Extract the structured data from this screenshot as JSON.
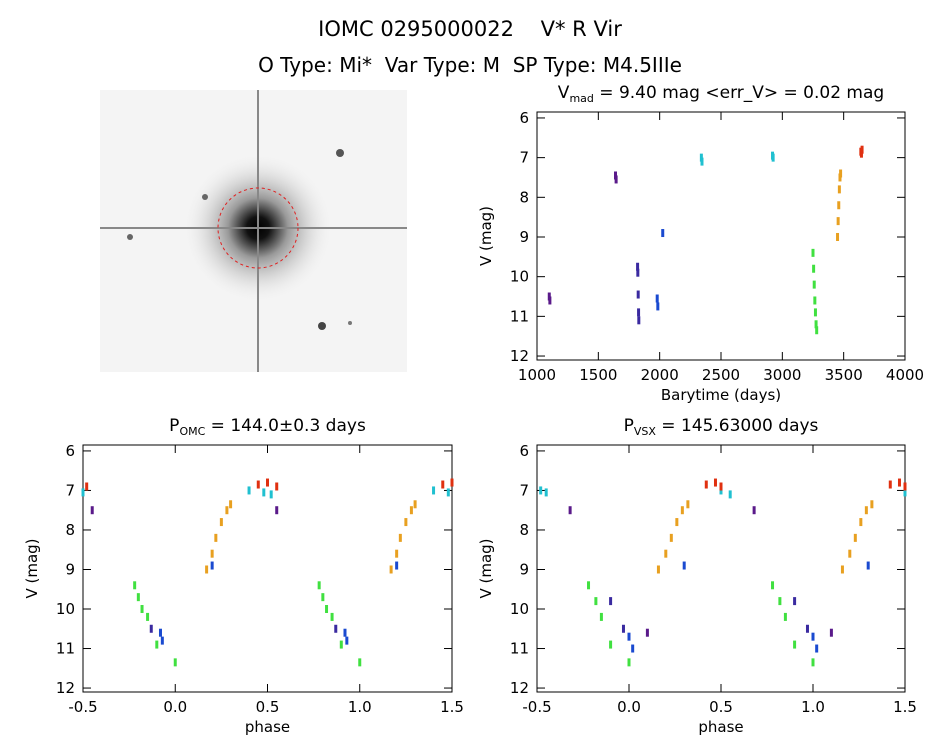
{
  "header": {
    "title": "IOMC 0295000022    V* R Vir",
    "subtitle": "O Type: Mi*  Var Type: M  SP Type: M4.5IIIe"
  },
  "chart_data": [
    {
      "type": "scatter",
      "title": "V",
      "title_sub": "mad",
      "title_rest": " = 9.40 mag <err_V> = 0.02 mag",
      "x_label": "Barytime (days)",
      "y_label": "V (mag)",
      "xlim": [
        1000,
        4000
      ],
      "xticks": [
        1000,
        1500,
        2000,
        2500,
        3000,
        3500,
        4000
      ],
      "ylim": [
        5.85,
        12.1
      ],
      "yticks": [
        6,
        7,
        8,
        9,
        10,
        11,
        12
      ],
      "y_inverted": true,
      "series": [
        {
          "color": "#5a1a8a",
          "x": [
            1100,
            1105,
            1640,
            1645
          ],
          "values": [
            10.5,
            10.6,
            7.45,
            7.55
          ]
        },
        {
          "color": "#3a2aa0",
          "x": [
            1820,
            1822,
            1825,
            1828,
            1830
          ],
          "values": [
            9.75,
            9.9,
            10.45,
            10.9,
            11.1
          ]
        },
        {
          "color": "#1a4ad0",
          "x": [
            1980,
            1985,
            2025
          ],
          "values": [
            10.55,
            10.75,
            8.9
          ]
        },
        {
          "color": "#20c0d0",
          "x": [
            2340,
            2345,
            2920,
            2925
          ],
          "values": [
            7.0,
            7.1,
            6.95,
            7.0
          ]
        },
        {
          "color": "#40e040",
          "x": [
            3250,
            3255,
            3260,
            3265,
            3270,
            3275,
            3280
          ],
          "values": [
            9.4,
            9.8,
            10.2,
            10.6,
            10.9,
            11.2,
            11.35
          ]
        },
        {
          "color": "#e8a020",
          "x": [
            3450,
            3455,
            3460,
            3465,
            3470,
            3475
          ],
          "values": [
            9.0,
            8.6,
            8.2,
            7.8,
            7.5,
            7.4
          ]
        },
        {
          "color": "#e03010",
          "x": [
            3640,
            3645,
            3650
          ],
          "values": [
            6.85,
            6.9,
            6.8
          ]
        }
      ]
    },
    {
      "type": "scatter",
      "title": "P",
      "title_sub": "OMC",
      "title_rest": " = 144.0±0.3 days",
      "x_label": "phase",
      "y_label": "V (mag)",
      "xlim": [
        -0.5,
        1.5
      ],
      "xticks": [
        {
          "value": -0.5,
          "label": "-0.5"
        },
        {
          "value": 0,
          "label": "0.0"
        },
        {
          "value": 0.5,
          "label": "0.5"
        },
        {
          "value": 1,
          "label": "1.0"
        },
        {
          "value": 1.5,
          "label": "1.5"
        }
      ],
      "ylim": [
        5.85,
        12.1
      ],
      "yticks": [
        6,
        7,
        8,
        9,
        10,
        11,
        12
      ],
      "y_inverted": true,
      "series": [
        {
          "color": "#5a1a8a",
          "x": [
            -0.45,
            0.55
          ],
          "values": [
            7.5,
            7.5
          ]
        },
        {
          "color": "#3a2aa0",
          "x": [
            -0.13,
            0.87
          ],
          "values": [
            10.5,
            10.5
          ]
        },
        {
          "color": "#1a4ad0",
          "x": [
            -0.08,
            -0.07,
            0.2,
            0.92,
            0.93,
            1.2
          ],
          "values": [
            10.6,
            10.8,
            8.9,
            10.6,
            10.8,
            8.9
          ]
        },
        {
          "color": "#40e040",
          "x": [
            -0.22,
            -0.2,
            -0.18,
            -0.15,
            -0.1,
            0.0,
            0.78,
            0.8,
            0.82,
            0.85,
            0.9,
            1.0
          ],
          "values": [
            9.4,
            9.7,
            10.0,
            10.2,
            10.9,
            11.35,
            9.4,
            9.7,
            10.0,
            10.2,
            10.9,
            11.35
          ]
        },
        {
          "color": "#e8a020",
          "x": [
            0.17,
            0.2,
            0.22,
            0.25,
            0.28,
            0.3,
            1.17,
            1.2,
            1.22,
            1.25,
            1.28,
            1.3
          ],
          "values": [
            9.0,
            8.6,
            8.2,
            7.8,
            7.5,
            7.35,
            9.0,
            8.6,
            8.2,
            7.8,
            7.5,
            7.35
          ]
        },
        {
          "color": "#20c0d0",
          "x": [
            -0.5,
            0.4,
            0.48,
            0.52,
            1.4,
            1.48
          ],
          "values": [
            7.05,
            7.0,
            7.05,
            7.1,
            7.0,
            7.05
          ]
        },
        {
          "color": "#e03010",
          "x": [
            -0.48,
            0.45,
            0.5,
            0.55,
            1.45,
            1.5
          ],
          "values": [
            6.9,
            6.85,
            6.8,
            6.9,
            6.85,
            6.8
          ]
        }
      ]
    },
    {
      "type": "scatter",
      "title": "P",
      "title_sub": "VSX",
      "title_rest": " = 145.63000 days",
      "x_label": "phase",
      "y_label": "V (mag)",
      "xlim": [
        -0.5,
        1.5
      ],
      "xticks": [
        {
          "value": -0.5,
          "label": "-0.5"
        },
        {
          "value": 0,
          "label": "0.0"
        },
        {
          "value": 0.5,
          "label": "0.5"
        },
        {
          "value": 1,
          "label": "1.0"
        },
        {
          "value": 1.5,
          "label": "1.5"
        }
      ],
      "ylim": [
        5.85,
        12.1
      ],
      "yticks": [
        6,
        7,
        8,
        9,
        10,
        11,
        12
      ],
      "y_inverted": true,
      "series": [
        {
          "color": "#5a1a8a",
          "x": [
            -0.32,
            0.1,
            0.68,
            1.1
          ],
          "values": [
            7.5,
            10.6,
            7.5,
            10.6
          ]
        },
        {
          "color": "#3a2aa0",
          "x": [
            -0.03,
            -0.1,
            0.97,
            0.9
          ],
          "values": [
            10.5,
            9.8,
            10.5,
            9.8
          ]
        },
        {
          "color": "#1a4ad0",
          "x": [
            0.0,
            0.02,
            0.3,
            1.0,
            1.02,
            1.3
          ],
          "values": [
            10.7,
            11.0,
            8.9,
            10.7,
            11.0,
            8.9
          ]
        },
        {
          "color": "#40e040",
          "x": [
            -0.22,
            -0.18,
            -0.15,
            -0.1,
            0.0,
            0.78,
            0.82,
            0.85,
            0.9,
            1.0
          ],
          "values": [
            9.4,
            9.8,
            10.2,
            10.9,
            11.35,
            9.4,
            9.8,
            10.2,
            10.9,
            11.35
          ]
        },
        {
          "color": "#e8a020",
          "x": [
            0.16,
            0.2,
            0.23,
            0.26,
            0.29,
            0.32,
            1.16,
            1.2,
            1.23,
            1.26,
            1.29,
            1.32
          ],
          "values": [
            9.0,
            8.6,
            8.2,
            7.8,
            7.5,
            7.35,
            9.0,
            8.6,
            8.2,
            7.8,
            7.5,
            7.35
          ]
        },
        {
          "color": "#20c0d0",
          "x": [
            -0.48,
            -0.45,
            0.5,
            0.55,
            1.5
          ],
          "values": [
            7.0,
            7.05,
            7.0,
            7.1,
            7.05
          ]
        },
        {
          "color": "#e03010",
          "x": [
            0.42,
            0.47,
            0.5,
            1.42,
            1.47,
            1.5
          ],
          "values": [
            6.85,
            6.8,
            6.9,
            6.85,
            6.8,
            6.9
          ]
        }
      ]
    }
  ]
}
